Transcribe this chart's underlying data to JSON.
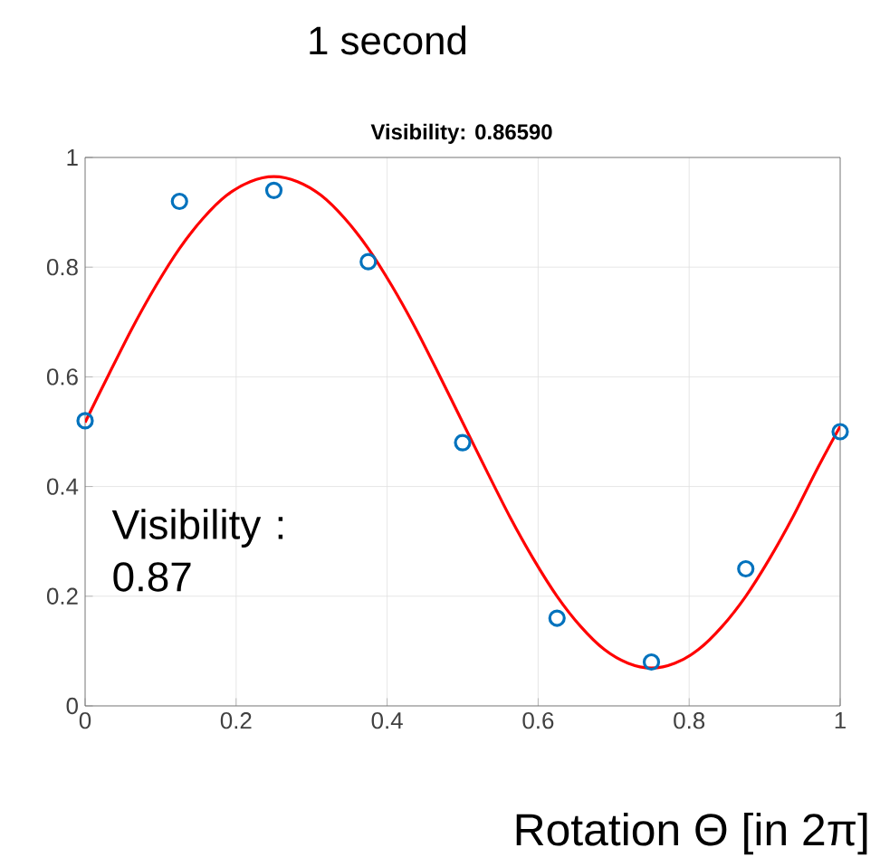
{
  "chart_data": {
    "type": "scatter",
    "title": "1 second",
    "subtitle": "Visibility: 0.86590",
    "xlabel": "Rotation Θ [in 2π]",
    "annotations": [
      "Visibility : 0.87"
    ],
    "xlim": [
      0,
      1
    ],
    "ylim": [
      0,
      1
    ],
    "xticks": [
      0,
      0.2,
      0.4,
      0.6,
      0.8,
      1
    ],
    "yticks": [
      0,
      0.2,
      0.4,
      0.6,
      0.8,
      1
    ],
    "grid": true,
    "series": [
      {
        "color": "#0072bd",
        "marker": "circle",
        "x": [
          0,
          0.125,
          0.25,
          0.375,
          0.5,
          0.625,
          0.75,
          0.875,
          1
        ],
        "values": [
          0.52,
          0.92,
          0.94,
          0.81,
          0.48,
          0.16,
          0.08,
          0.25,
          0.5
        ]
      },
      {
        "type": "line",
        "color": "#ff0000",
        "marker": "none",
        "x": [
          0,
          0.03125,
          0.0625,
          0.09375,
          0.125,
          0.15625,
          0.1875,
          0.21875,
          0.25,
          0.28125,
          0.3125,
          0.34375,
          0.375,
          0.40625,
          0.4375,
          0.46875,
          0.5,
          0.53125,
          0.5625,
          0.59375,
          0.625,
          0.65625,
          0.6875,
          0.71875,
          0.75,
          0.78125,
          0.8125,
          0.84375,
          0.875,
          0.90625,
          0.9375,
          0.96875,
          1
        ],
        "values": [
          0.517,
          0.604,
          0.689,
          0.766,
          0.834,
          0.889,
          0.931,
          0.956,
          0.965,
          0.956,
          0.931,
          0.889,
          0.834,
          0.766,
          0.689,
          0.604,
          0.517,
          0.43,
          0.345,
          0.268,
          0.2,
          0.145,
          0.103,
          0.078,
          0.069,
          0.078,
          0.103,
          0.145,
          0.2,
          0.268,
          0.345,
          0.43,
          0.51
        ]
      }
    ]
  }
}
